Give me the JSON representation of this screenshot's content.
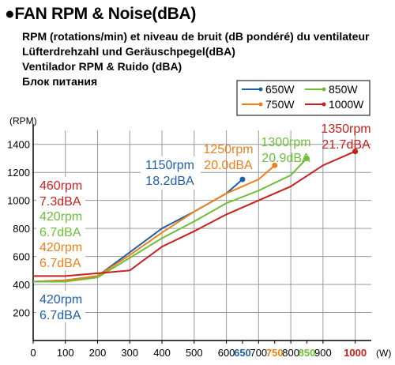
{
  "heading": {
    "title": "●FAN RPM &  Noise(dBA)",
    "lines": [
      "RPM (rotations/min) et niveau de bruit (dB pondéré) du ventilateur",
      "Lüfterdrehzahl und Geräuschpegel(dBA)",
      "Ventilador RPM & Ruido (dBA)",
      "Блок питания"
    ]
  },
  "chart_data": {
    "type": "line",
    "ylabel": "(RPM)",
    "xlabel": "(W)",
    "xlim": [
      0,
      1050
    ],
    "ylim": [
      0,
      1500
    ],
    "x_ticks": [
      0,
      100,
      200,
      300,
      400,
      500,
      600,
      650,
      700,
      750,
      800,
      850,
      900,
      1000
    ],
    "y_ticks": [
      200,
      400,
      600,
      800,
      1000,
      1200,
      1400
    ],
    "grid": true,
    "legend_position": "top-right",
    "series": [
      {
        "name": "650W",
        "color": "#1f5fa8",
        "x": [
          0,
          100,
          200,
          300,
          400,
          500,
          600,
          650
        ],
        "y": [
          420,
          430,
          460,
          630,
          800,
          920,
          1050,
          1150
        ],
        "start_label": [
          "420rpm",
          "6.7dBA"
        ],
        "end_label": [
          "1150rpm",
          "18.2dBA"
        ]
      },
      {
        "name": "750W",
        "color": "#f07f1a",
        "x": [
          0,
          100,
          200,
          300,
          400,
          500,
          600,
          700,
          750
        ],
        "y": [
          420,
          430,
          460,
          610,
          770,
          920,
          1050,
          1150,
          1250
        ],
        "start_label": [
          "420rpm",
          "6.7dBA"
        ],
        "end_label": [
          "1250rpm",
          "20.0dBA"
        ]
      },
      {
        "name": "850W",
        "color": "#6dbf3a",
        "x": [
          0,
          100,
          200,
          300,
          400,
          500,
          600,
          700,
          800,
          850
        ],
        "y": [
          420,
          420,
          450,
          590,
          730,
          850,
          980,
          1070,
          1180,
          1300
        ],
        "start_label": [
          "420rpm",
          "6.7dBA"
        ],
        "end_label": [
          "1300rpm",
          "20.9dBA"
        ]
      },
      {
        "name": "1000W",
        "color": "#c8201c",
        "x": [
          0,
          100,
          200,
          300,
          400,
          500,
          600,
          700,
          800,
          900,
          1000
        ],
        "y": [
          460,
          460,
          480,
          500,
          670,
          780,
          900,
          1000,
          1100,
          1250,
          1350
        ],
        "start_label": [
          "460rpm",
          "7.3dBA"
        ],
        "end_label": [
          "1350rpm",
          "21.7dBA"
        ]
      }
    ],
    "x_tick_colors": {
      "650": "#1f5fa8",
      "750": "#f07f1a",
      "850": "#6dbf3a",
      "1000": "#c8201c"
    }
  }
}
